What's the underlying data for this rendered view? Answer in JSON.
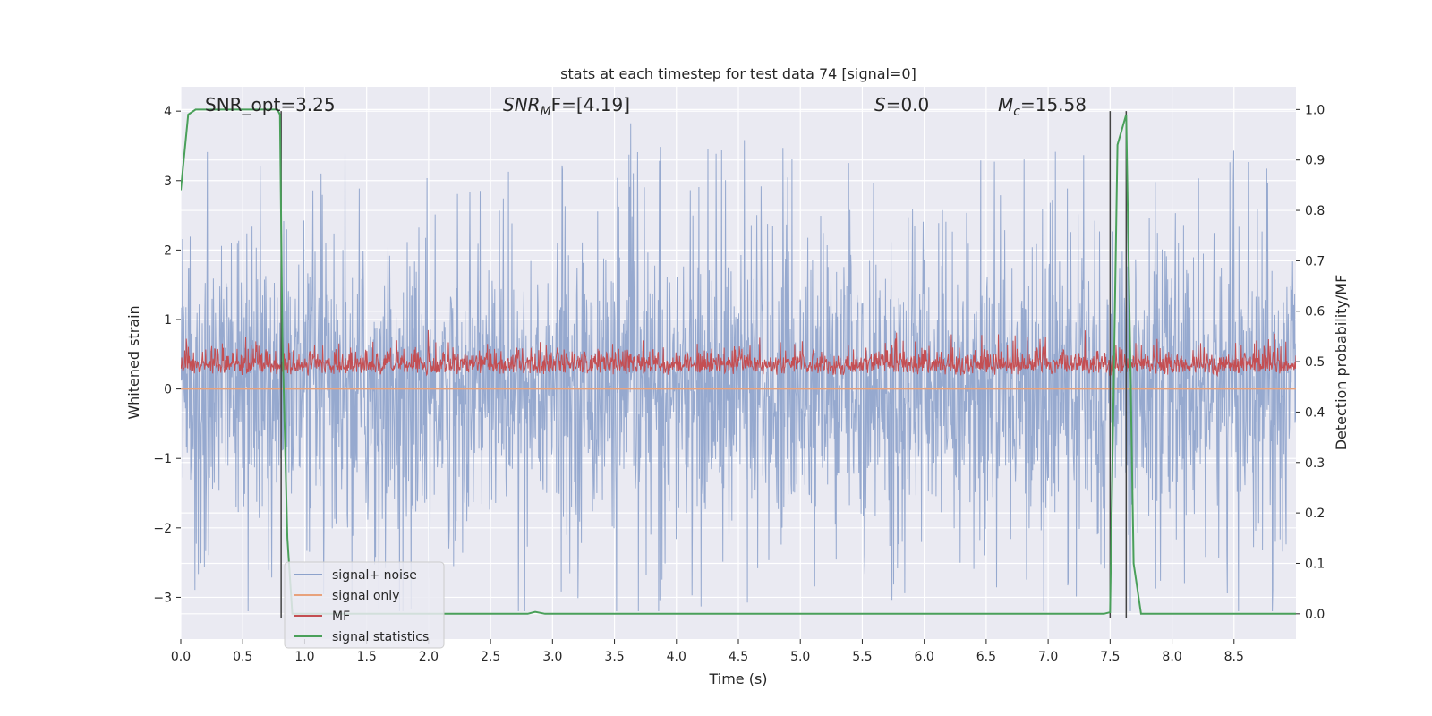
{
  "chart_data": {
    "type": "line",
    "title": "stats at each timestep for test data 74 [signal=0]",
    "xlabel": "Time (s)",
    "ylabel_left": "Whitened strain",
    "ylabel_right": "Detection probability/MF",
    "xlim": [
      0.0,
      9.0
    ],
    "ylim_left": [
      -3.6,
      4.35
    ],
    "ylim_right": [
      -0.05,
      1.045
    ],
    "x_ticks": [
      "0.0",
      "0.5",
      "1.0",
      "1.5",
      "2.0",
      "2.5",
      "3.0",
      "3.5",
      "4.0",
      "4.5",
      "5.0",
      "5.5",
      "6.0",
      "6.5",
      "7.0",
      "7.5",
      "8.0",
      "8.5"
    ],
    "y_left_ticks": [
      "4",
      "3",
      "2",
      "1",
      "0",
      "−1",
      "−2",
      "−3"
    ],
    "y_right_ticks": [
      "1.0",
      "0.9",
      "0.8",
      "0.7",
      "0.6",
      "0.5",
      "0.4",
      "0.3",
      "0.2",
      "0.1",
      "0.0"
    ],
    "grid": true,
    "annotations": {
      "snr_opt": "SNR_opt=3.25",
      "snr_mf_main": "SNR",
      "snr_mf_sub": "M",
      "snr_mf_tail": "F=[4.19]",
      "s_main": "S",
      "s_tail": "=0.0",
      "mc_main": "M",
      "mc_sub": "c",
      "mc_tail": "=15.58"
    },
    "series": [
      {
        "name": "signal+ noise",
        "axis": "left",
        "color": "#8da2cb",
        "description": "dense whitened strain noise, roughly symmetric, envelope approx -3 to +3.5"
      },
      {
        "name": "signal only",
        "axis": "left",
        "color": "#e8a27c",
        "x": [
          0.0,
          9.0
        ],
        "y": [
          0.0,
          0.0
        ]
      },
      {
        "name": "MF",
        "axis": "left",
        "color": "#c44e52",
        "description": "matched filter output, approx 0 to 0.8, mean approx 0.3"
      },
      {
        "name": "signal statistics",
        "axis": "right",
        "color": "#4aa05a",
        "x": [
          0.0,
          0.06,
          0.12,
          0.2,
          0.5,
          0.78,
          0.8,
          0.82,
          0.86,
          0.9,
          1.0,
          2.0,
          2.8,
          2.86,
          2.94,
          3.0,
          4.0,
          5.0,
          6.0,
          7.0,
          7.45,
          7.5,
          7.56,
          7.63,
          7.66,
          7.69,
          7.75,
          8.0,
          8.5,
          9.0
        ],
        "y": [
          0.84,
          0.99,
          1.0,
          1.0,
          1.0,
          1.0,
          0.99,
          0.55,
          0.15,
          0.0,
          0.0,
          0.0,
          0.0,
          0.004,
          0.0,
          0.0,
          0.0,
          0.0,
          0.0,
          0.0,
          0.0,
          0.003,
          0.93,
          0.99,
          0.55,
          0.1,
          0.0,
          0.0,
          0.0,
          0.0
        ]
      }
    ],
    "vertical_lines": [
      0.81,
      7.5,
      7.63
    ],
    "legend": {
      "placement": "lower-left",
      "entries": [
        "signal+ noise",
        "signal only",
        "MF",
        "signal statistics"
      ]
    }
  }
}
